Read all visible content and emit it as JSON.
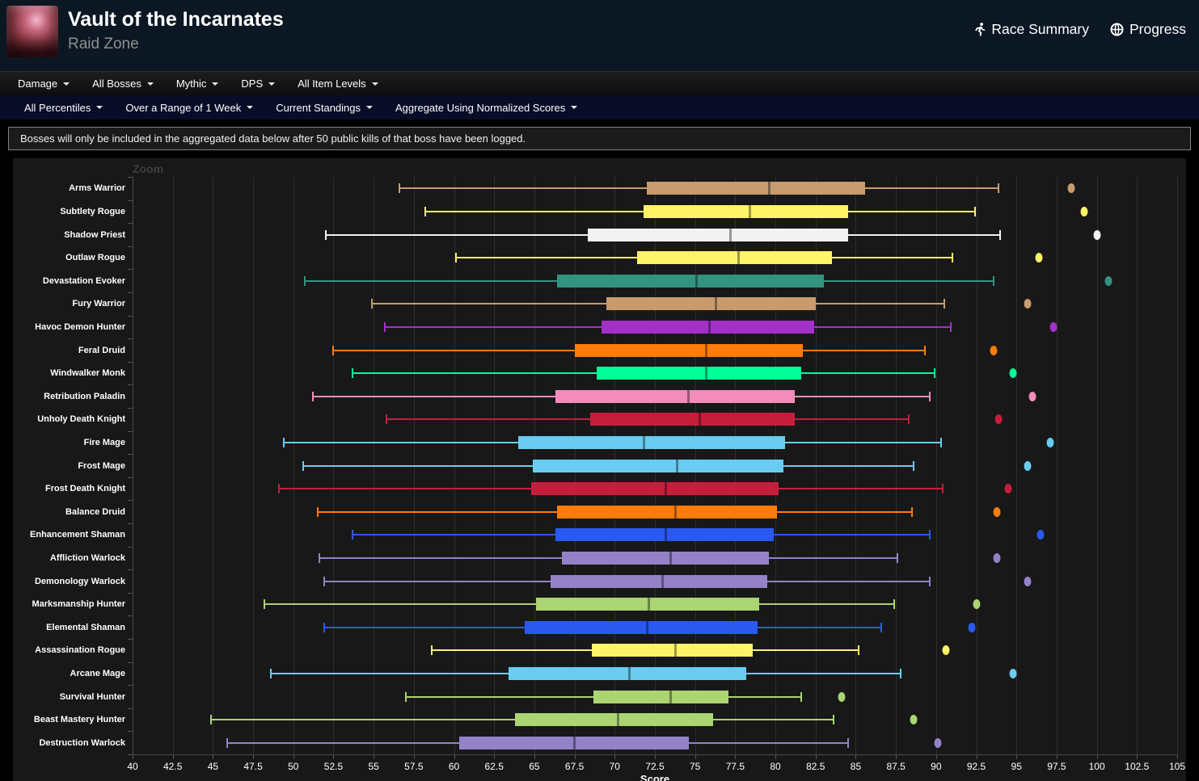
{
  "header": {
    "title": "Vault of the Incarnates",
    "subtitle": "Raid Zone",
    "race_summary_label": "Race Summary",
    "progress_label": "Progress"
  },
  "nav_primary": {
    "items": [
      "Damage",
      "All Bosses",
      "Mythic",
      "DPS",
      "All Item Levels"
    ]
  },
  "nav_secondary": {
    "items": [
      "All Percentiles",
      "Over a Range of 1 Week",
      "Current Standings",
      "Aggregate Using Normalized Scores"
    ]
  },
  "notice": {
    "text": "Bosses will only be included in the aggregated data below after 50 public kills of that boss have been logged."
  },
  "chart_data": {
    "type": "boxplot",
    "zoom_label": "Zoom",
    "xlabel": "Score",
    "x_min": 40,
    "x_max": 105,
    "x_tick_step": 2.5,
    "grid": true,
    "legend": "none",
    "series": [
      {
        "name": "Arms Warrior",
        "color": "#C79B6D",
        "low": 56.6,
        "q1": 72.0,
        "median": 79.6,
        "q3": 85.6,
        "high": 93.9,
        "outlier": 98.4
      },
      {
        "name": "Subtlety Rogue",
        "color": "#FFF468",
        "low": 58.2,
        "q1": 71.8,
        "median": 78.4,
        "q3": 84.5,
        "high": 92.4,
        "outlier": 99.2
      },
      {
        "name": "Shadow Priest",
        "color": "#F2F2F2",
        "low": 52.0,
        "q1": 68.3,
        "median": 77.2,
        "q3": 84.5,
        "high": 94.0,
        "outlier": 100.0
      },
      {
        "name": "Outlaw Rogue",
        "color": "#FFF468",
        "low": 60.1,
        "q1": 71.4,
        "median": 77.7,
        "q3": 83.5,
        "high": 91.0,
        "outlier": 96.4
      },
      {
        "name": "Devastation Evoker",
        "color": "#33937F",
        "low": 50.7,
        "q1": 66.4,
        "median": 75.1,
        "q3": 83.0,
        "high": 93.6,
        "outlier": 100.7
      },
      {
        "name": "Fury Warrior",
        "color": "#C79B6D",
        "low": 54.9,
        "q1": 69.5,
        "median": 76.3,
        "q3": 82.5,
        "high": 90.5,
        "outlier": 95.7
      },
      {
        "name": "Havoc Demon Hunter",
        "color": "#A330C9",
        "low": 55.7,
        "q1": 69.2,
        "median": 75.9,
        "q3": 82.4,
        "high": 90.9,
        "outlier": 97.3
      },
      {
        "name": "Feral Druid",
        "color": "#FF7C0A",
        "low": 52.5,
        "q1": 67.5,
        "median": 75.7,
        "q3": 81.7,
        "high": 89.3,
        "outlier": 93.6
      },
      {
        "name": "Windwalker Monk",
        "color": "#00FF98",
        "low": 53.7,
        "q1": 68.9,
        "median": 75.7,
        "q3": 81.6,
        "high": 89.9,
        "outlier": 94.8
      },
      {
        "name": "Retribution Paladin",
        "color": "#F48CBA",
        "low": 51.2,
        "q1": 66.3,
        "median": 74.6,
        "q3": 81.2,
        "high": 89.6,
        "outlier": 96.0
      },
      {
        "name": "Unholy Death Knight",
        "color": "#C41E3A",
        "low": 55.8,
        "q1": 68.5,
        "median": 75.3,
        "q3": 81.2,
        "high": 88.3,
        "outlier": 93.9
      },
      {
        "name": "Fire Mage",
        "color": "#69CCF0",
        "low": 49.4,
        "q1": 64.0,
        "median": 71.8,
        "q3": 80.6,
        "high": 90.3,
        "outlier": 97.1
      },
      {
        "name": "Frost Mage",
        "color": "#69CCF0",
        "low": 50.6,
        "q1": 64.9,
        "median": 73.9,
        "q3": 80.5,
        "high": 88.6,
        "outlier": 95.7
      },
      {
        "name": "Frost Death Knight",
        "color": "#C41E3A",
        "low": 49.1,
        "q1": 64.8,
        "median": 73.2,
        "q3": 80.2,
        "high": 90.4,
        "outlier": 94.5
      },
      {
        "name": "Balance Druid",
        "color": "#FF7C0A",
        "low": 51.5,
        "q1": 66.4,
        "median": 73.8,
        "q3": 80.1,
        "high": 88.5,
        "outlier": 93.8
      },
      {
        "name": "Enhancement Shaman",
        "color": "#2A59F0",
        "low": 53.7,
        "q1": 66.3,
        "median": 73.2,
        "q3": 79.9,
        "high": 89.6,
        "outlier": 96.5
      },
      {
        "name": "Affliction Warlock",
        "color": "#9482C9",
        "low": 51.6,
        "q1": 66.7,
        "median": 73.5,
        "q3": 79.6,
        "high": 87.6,
        "outlier": 93.8
      },
      {
        "name": "Demonology Warlock",
        "color": "#9482C9",
        "low": 51.9,
        "q1": 66.0,
        "median": 73.0,
        "q3": 79.5,
        "high": 89.6,
        "outlier": 95.7
      },
      {
        "name": "Marksmanship Hunter",
        "color": "#ABD473",
        "low": 48.2,
        "q1": 65.1,
        "median": 72.1,
        "q3": 79.0,
        "high": 87.4,
        "outlier": 92.5
      },
      {
        "name": "Elemental Shaman",
        "color": "#2A59F0",
        "low": 51.9,
        "q1": 64.4,
        "median": 72.0,
        "q3": 78.9,
        "high": 86.6,
        "outlier": 92.2
      },
      {
        "name": "Assassination Rogue",
        "color": "#FFF468",
        "low": 58.6,
        "q1": 68.6,
        "median": 73.8,
        "q3": 78.6,
        "high": 85.2,
        "outlier": 90.6
      },
      {
        "name": "Arcane Mage",
        "color": "#69CCF0",
        "low": 48.6,
        "q1": 63.4,
        "median": 70.9,
        "q3": 78.2,
        "high": 87.8,
        "outlier": 94.8
      },
      {
        "name": "Survival Hunter",
        "color": "#ABD473",
        "low": 57.0,
        "q1": 68.7,
        "median": 73.5,
        "q3": 77.1,
        "high": 81.6,
        "outlier": 84.1
      },
      {
        "name": "Beast Mastery Hunter",
        "color": "#ABD473",
        "low": 44.9,
        "q1": 63.8,
        "median": 70.2,
        "q3": 76.1,
        "high": 83.6,
        "outlier": 88.6
      },
      {
        "name": "Destruction Warlock",
        "color": "#9482C9",
        "low": 45.9,
        "q1": 60.3,
        "median": 67.5,
        "q3": 74.6,
        "high": 84.5,
        "outlier": 90.1
      }
    ]
  }
}
